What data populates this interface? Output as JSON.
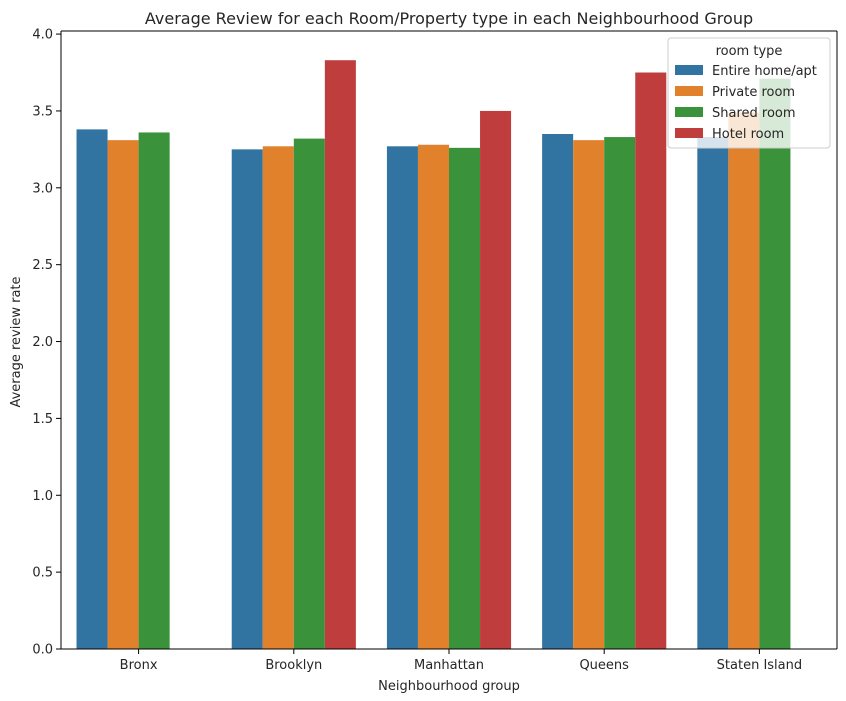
{
  "chart_data": {
    "type": "bar",
    "title": "Average Review for each Room/Property type in each Neighbourhood Group",
    "xlabel": "Neighbourhood group",
    "ylabel": "Average review rate",
    "categories": [
      "Bronx",
      "Brooklyn",
      "Manhattan",
      "Queens",
      "Staten Island"
    ],
    "ylim": [
      0,
      4.0
    ],
    "yticks": [
      "0.0",
      "0.5",
      "1.0",
      "1.5",
      "2.0",
      "2.5",
      "3.0",
      "3.5",
      "4.0"
    ],
    "legend": {
      "title": "room type",
      "placement": "top-right"
    },
    "series": [
      {
        "name": "Entire home/apt",
        "color": "#3274a1",
        "values": [
          3.38,
          3.25,
          3.27,
          3.35,
          3.33
        ]
      },
      {
        "name": "Private room",
        "color": "#e1812c",
        "values": [
          3.31,
          3.27,
          3.28,
          3.31,
          3.49
        ]
      },
      {
        "name": "Shared room",
        "color": "#3a923a",
        "values": [
          3.36,
          3.32,
          3.26,
          3.33,
          3.71
        ]
      },
      {
        "name": "Hotel room",
        "color": "#c03d3e",
        "values": [
          null,
          3.83,
          3.5,
          3.75,
          null
        ]
      }
    ],
    "grid": false
  }
}
